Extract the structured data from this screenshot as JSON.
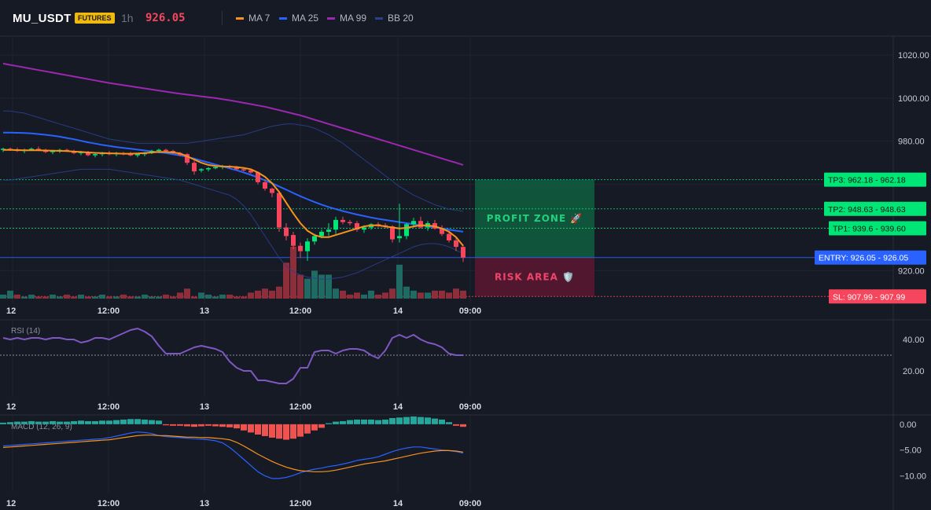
{
  "header": {
    "symbol": "MU_USDT",
    "badge": "FUTURES",
    "timeframe": "1h",
    "price": "926.05",
    "indicators": [
      {
        "label": "MA 7",
        "color": "#f7931a"
      },
      {
        "label": "MA 25",
        "color": "#2962ff"
      },
      {
        "label": "MA 99",
        "color": "#9c27b0"
      },
      {
        "label": "BB 20",
        "color": "#2a3f8f"
      }
    ]
  },
  "colors": {
    "up": "#26a69a",
    "up_bright": "#00e676",
    "down": "#f6465d",
    "vol_up": "#1f6b63",
    "vol_down": "#8f2e3b",
    "ma7": "#f7931a",
    "ma25": "#2962ff",
    "ma99": "#9c27b0",
    "bb": "#2a3f8f",
    "tp": "#00e676",
    "entry": "#2962ff",
    "sl": "#f6465d",
    "rsi": "#7e57c2",
    "macd": "#2962ff",
    "signal": "#f7931a"
  },
  "time_labels": [
    "12",
    "12:00",
    "13",
    "12:00",
    "14",
    "09:00"
  ],
  "zones": {
    "profit_label": "PROFIT ZONE 🚀",
    "risk_label": "RISK AREA 🛡️"
  },
  "chart_data": [
    {
      "type": "candlestick",
      "title": "MU_USDT 1h",
      "ylim": [
        907,
        1028
      ],
      "yticks": [
        920,
        940,
        960,
        980,
        1000,
        1020
      ],
      "ytick_labels": [
        "920.00",
        "",
        "",
        "980.00",
        "1000.00",
        "1020.00"
      ],
      "ohlc": [
        [
          976.0,
          977.0,
          975.0,
          976.5
        ],
        [
          976.5,
          977.0,
          975.5,
          976.0
        ],
        [
          976.0,
          977.0,
          975.0,
          975.5
        ],
        [
          975.5,
          976.5,
          974.5,
          976.0
        ],
        [
          976.0,
          977.0,
          975.5,
          976.5
        ],
        [
          976.5,
          977.5,
          975.5,
          976.0
        ],
        [
          976.0,
          976.5,
          974.5,
          975.0
        ],
        [
          975.0,
          976.0,
          974.0,
          975.5
        ],
        [
          975.5,
          976.5,
          974.5,
          976.0
        ],
        [
          976.0,
          976.5,
          975.0,
          975.5
        ],
        [
          975.5,
          976.0,
          974.0,
          974.5
        ],
        [
          974.5,
          975.5,
          973.5,
          975.0
        ],
        [
          975.0,
          975.5,
          973.0,
          973.5
        ],
        [
          973.5,
          974.5,
          972.5,
          974.0
        ],
        [
          974.0,
          975.0,
          973.0,
          974.5
        ],
        [
          974.5,
          975.5,
          973.5,
          974.0
        ],
        [
          974.0,
          975.0,
          973.0,
          974.5
        ],
        [
          974.5,
          975.0,
          973.5,
          974.0
        ],
        [
          974.0,
          975.0,
          973.0,
          973.5
        ],
        [
          973.5,
          974.5,
          972.5,
          974.0
        ],
        [
          974.0,
          975.0,
          973.0,
          974.5
        ],
        [
          974.5,
          976.0,
          974.0,
          975.5
        ],
        [
          975.5,
          976.5,
          974.5,
          976.0
        ],
        [
          976.0,
          976.5,
          975.0,
          975.5
        ],
        [
          975.5,
          976.0,
          974.0,
          974.5
        ],
        [
          974.5,
          975.0,
          973.0,
          973.5
        ],
        [
          974.0,
          974.5,
          969.0,
          970.0
        ],
        [
          970.0,
          971.0,
          964.5,
          966.0
        ],
        [
          966.5,
          967.5,
          965.5,
          967.0
        ],
        [
          967.0,
          968.0,
          966.0,
          967.5
        ],
        [
          967.5,
          968.5,
          967.0,
          968.0
        ],
        [
          968.0,
          969.0,
          967.0,
          968.5
        ],
        [
          968.5,
          969.0,
          967.5,
          968.0
        ],
        [
          968.0,
          968.5,
          966.5,
          967.0
        ],
        [
          967.0,
          968.0,
          966.0,
          966.5
        ],
        [
          966.5,
          967.0,
          965.0,
          965.5
        ],
        [
          965.5,
          966.0,
          960.0,
          961.0
        ],
        [
          961.0,
          962.0,
          957.0,
          958.0
        ],
        [
          958.0,
          958.5,
          954.0,
          956.0
        ],
        [
          956.0,
          957.0,
          938.0,
          940.0
        ],
        [
          940.0,
          942.0,
          934.0,
          936.0
        ],
        [
          936.5,
          938.0,
          930.0,
          931.5
        ],
        [
          931.5,
          933.0,
          926.0,
          929.0
        ],
        [
          929.0,
          935.0,
          924.5,
          933.5
        ],
        [
          933.5,
          937.0,
          932.0,
          936.0
        ],
        [
          936.0,
          939.0,
          935.0,
          938.0
        ],
        [
          938.0,
          942.0,
          936.0,
          939.0
        ],
        [
          939.0,
          945.0,
          937.0,
          943.5
        ],
        [
          943.5,
          945.0,
          941.5,
          942.5
        ],
        [
          942.5,
          943.5,
          941.0,
          942.0
        ],
        [
          942.0,
          943.0,
          938.0,
          939.0
        ],
        [
          939.0,
          941.0,
          937.5,
          940.0
        ],
        [
          940.0,
          942.0,
          939.0,
          941.5
        ],
        [
          941.5,
          942.5,
          940.0,
          941.0
        ],
        [
          941.0,
          942.0,
          939.5,
          940.5
        ],
        [
          940.5,
          941.0,
          933.0,
          934.5
        ],
        [
          935.0,
          951.0,
          933.0,
          936.0
        ],
        [
          936.0,
          942.0,
          934.5,
          941.5
        ],
        [
          941.5,
          944.5,
          940.0,
          943.0
        ],
        [
          943.0,
          945.0,
          939.5,
          940.0
        ],
        [
          940.0,
          943.0,
          938.5,
          942.0
        ],
        [
          942.0,
          943.5,
          939.0,
          939.5
        ],
        [
          939.5,
          941.0,
          936.0,
          937.0
        ],
        [
          937.0,
          938.5,
          933.0,
          934.0
        ],
        [
          934.0,
          935.5,
          929.0,
          931.0
        ],
        [
          931.0,
          932.0,
          924.0,
          926.05
        ]
      ],
      "volume": [
        2,
        4,
        2,
        1,
        2,
        1,
        1,
        2,
        1,
        2,
        1,
        2,
        1,
        1,
        2,
        1,
        1,
        2,
        1,
        1,
        2,
        1,
        1,
        2,
        1,
        3,
        5,
        1,
        3,
        2,
        1,
        2,
        2,
        1,
        1,
        3,
        4,
        5,
        4,
        6,
        18,
        26,
        12,
        10,
        14,
        12,
        12,
        5,
        4,
        2,
        3,
        2,
        4,
        2,
        3,
        5,
        17,
        6,
        4,
        3,
        3,
        4,
        4,
        3,
        5,
        4
      ],
      "volume_up": [
        true,
        true,
        false,
        true,
        true,
        false,
        false,
        true,
        true,
        false,
        false,
        true,
        false,
        true,
        true,
        false,
        true,
        false,
        false,
        true,
        true,
        true,
        true,
        false,
        false,
        false,
        false,
        false,
        true,
        true,
        true,
        true,
        false,
        false,
        false,
        false,
        false,
        false,
        false,
        false,
        false,
        false,
        false,
        true,
        true,
        true,
        true,
        true,
        false,
        false,
        false,
        true,
        true,
        false,
        false,
        false,
        true,
        true,
        true,
        false,
        true,
        false,
        false,
        false,
        false,
        false
      ],
      "ma7": [
        976.0,
        976.0,
        975.9,
        975.8,
        975.8,
        975.8,
        975.7,
        975.6,
        975.5,
        975.4,
        975.2,
        975.0,
        974.8,
        974.6,
        974.5,
        974.4,
        974.3,
        974.2,
        974.2,
        974.3,
        974.5,
        974.8,
        975.0,
        975.0,
        974.8,
        974.3,
        973.0,
        971.5,
        970.0,
        969.0,
        968.5,
        968.3,
        968.2,
        968.0,
        967.6,
        967.0,
        965.5,
        963.5,
        960.5,
        956.5,
        951.5,
        946.5,
        942.0,
        938.5,
        936.5,
        935.5,
        935.5,
        936.5,
        937.5,
        938.5,
        939.5,
        940.5,
        941.0,
        941.0,
        940.5,
        940.0,
        939.5,
        939.8,
        940.5,
        941.0,
        941.0,
        940.5,
        939.5,
        938.0,
        935.5,
        931.5
      ],
      "ma25": [
        984.0,
        984.0,
        983.9,
        983.8,
        983.6,
        983.3,
        983.0,
        982.6,
        982.1,
        981.5,
        980.9,
        980.2,
        979.5,
        978.9,
        978.3,
        977.8,
        977.3,
        976.9,
        976.5,
        976.1,
        975.7,
        975.3,
        974.9,
        974.5,
        974.0,
        973.4,
        972.7,
        971.9,
        971.0,
        970.1,
        969.2,
        968.3,
        967.4,
        966.5,
        965.5,
        964.4,
        963.2,
        961.9,
        960.5,
        959.0,
        957.5,
        956.0,
        954.5,
        953.1,
        951.8,
        950.6,
        949.5,
        948.5,
        947.6,
        946.8,
        946.0,
        945.3,
        944.6,
        944.0,
        943.5,
        943.0,
        942.5,
        942.0,
        941.5,
        941.0,
        940.5,
        940.0,
        939.5,
        939.0,
        938.5,
        938.0
      ],
      "ma99": [
        1016.0,
        1015.4,
        1014.8,
        1014.2,
        1013.6,
        1013.0,
        1012.4,
        1011.8,
        1011.2,
        1010.6,
        1010.0,
        1009.4,
        1008.8,
        1008.2,
        1007.6,
        1007.0,
        1006.5,
        1006.0,
        1005.5,
        1005.0,
        1004.5,
        1004.0,
        1003.5,
        1003.0,
        1002.5,
        1002.0,
        1001.6,
        1001.2,
        1000.8,
        1000.4,
        1000.0,
        999.5,
        999.0,
        998.4,
        997.8,
        997.2,
        996.6,
        996.0,
        995.2,
        994.4,
        993.6,
        992.8,
        992.0,
        991.0,
        990.0,
        989.0,
        988.0,
        987.0,
        986.0,
        985.0,
        984.0,
        983.0,
        982.0,
        981.0,
        980.0,
        979.0,
        978.0,
        977.0,
        976.0,
        975.0,
        974.0,
        973.0,
        972.0,
        971.0,
        970.0,
        969.0
      ],
      "bb_upper": [
        994.0,
        994.0,
        993.5,
        993.0,
        992.0,
        991.0,
        990.0,
        989.0,
        988.0,
        987.0,
        986.0,
        985.0,
        984.0,
        983.0,
        982.0,
        981.0,
        980.5,
        980.0,
        979.5,
        979.0,
        979.0,
        979.0,
        979.0,
        979.0,
        979.0,
        979.0,
        979.0,
        979.5,
        980.0,
        980.5,
        981.0,
        981.5,
        982.0,
        982.5,
        983.0,
        984.0,
        985.0,
        986.0,
        987.0,
        987.5,
        988.0,
        988.0,
        987.5,
        987.0,
        986.0,
        984.5,
        983.0,
        981.0,
        979.0,
        976.5,
        974.0,
        971.5,
        969.0,
        966.5,
        964.0,
        961.5,
        959.0,
        957.0,
        955.0,
        953.5,
        952.0,
        950.5,
        949.5,
        948.5,
        948.0,
        947.5
      ],
      "bb_lower": [
        962.0,
        962.0,
        962.5,
        963.0,
        963.5,
        964.0,
        964.5,
        965.0,
        965.5,
        966.0,
        966.5,
        967.0,
        967.0,
        967.0,
        967.0,
        967.0,
        966.5,
        966.0,
        965.5,
        965.0,
        964.5,
        964.0,
        963.5,
        963.0,
        962.5,
        962.0,
        961.0,
        960.0,
        959.0,
        958.0,
        957.0,
        956.0,
        955.0,
        953.0,
        950.0,
        946.0,
        941.0,
        936.0,
        931.0,
        926.0,
        922.0,
        919.5,
        918.0,
        917.0,
        916.5,
        916.0,
        916.0,
        916.5,
        917.0,
        918.0,
        919.0,
        920.5,
        922.0,
        923.5,
        925.0,
        926.5,
        928.0,
        929.5,
        931.0,
        932.0,
        932.5,
        932.5,
        932.0,
        931.0,
        929.5,
        928.0
      ],
      "levels": [
        {
          "name": "TP3",
          "label": "TP3: 962.18 - 962.18",
          "price": 962.18,
          "color": "#00e676"
        },
        {
          "name": "TP2",
          "label": "TP2: 948.63 - 948.63",
          "price": 948.63,
          "color": "#00e676"
        },
        {
          "name": "TP1",
          "label": "TP1: 939.6 - 939.60",
          "price": 939.6,
          "color": "#00e676"
        },
        {
          "name": "ENTRY",
          "label": "ENTRY: 926.05 - 926.05",
          "price": 926.05,
          "color": "#2962ff"
        },
        {
          "name": "SL",
          "label": "SL: 907.99 - 907.99",
          "price": 907.99,
          "color": "#f6465d"
        }
      ]
    },
    {
      "type": "line",
      "title": "RSI (14)",
      "ylim": [
        5,
        52
      ],
      "yticks": [
        20,
        40
      ],
      "ytick_labels": [
        "20.00",
        "40.00"
      ],
      "reference_line": 30,
      "values": [
        41,
        40,
        41,
        40,
        41,
        41,
        40,
        41,
        41,
        40,
        40,
        38,
        39,
        41,
        41,
        40,
        42,
        44,
        46,
        47,
        45,
        42,
        36,
        31,
        31,
        31,
        33,
        35,
        36,
        35,
        34,
        32,
        26,
        22,
        20,
        20,
        14,
        14,
        13,
        12,
        12,
        15,
        22,
        22,
        32,
        33,
        33,
        31,
        33,
        34,
        34,
        33,
        30,
        28,
        33,
        41,
        43,
        41,
        43,
        40,
        38,
        37,
        35,
        31,
        30,
        30
      ]
    },
    {
      "type": "bar",
      "title": "MACD (12, 26, 9)",
      "ylim": [
        -12.5,
        1.5
      ],
      "yticks": [
        0,
        -5,
        -10
      ],
      "ytick_labels": [
        "0.00",
        "−5.00",
        "−10.00"
      ],
      "histogram": [
        0.3,
        0.4,
        0.5,
        0.5,
        0.6,
        0.5,
        0.5,
        0.6,
        0.5,
        0.5,
        0.6,
        0.7,
        0.6,
        0.6,
        0.7,
        0.7,
        0.8,
        0.9,
        1.0,
        1.0,
        0.9,
        0.8,
        0.7,
        -0.2,
        -0.3,
        -0.3,
        -0.4,
        -0.5,
        -0.4,
        -0.3,
        -0.4,
        -0.5,
        -0.6,
        -0.8,
        -1.2,
        -1.6,
        -2.0,
        -2.3,
        -2.6,
        -2.8,
        -3.0,
        -2.8,
        -2.4,
        -1.8,
        -1.2,
        -0.7,
        0.2,
        0.5,
        0.6,
        0.8,
        0.9,
        0.9,
        0.9,
        0.8,
        0.9,
        1.2,
        1.3,
        1.4,
        1.5,
        1.4,
        1.3,
        1.1,
        0.9,
        0.4,
        -0.3,
        -0.5
      ],
      "macd": [
        -4.2,
        -4.1,
        -4.0,
        -3.9,
        -3.8,
        -3.7,
        -3.6,
        -3.5,
        -3.4,
        -3.3,
        -3.2,
        -3.1,
        -3.0,
        -2.9,
        -2.8,
        -2.6,
        -2.3,
        -2.0,
        -1.7,
        -1.5,
        -1.6,
        -1.8,
        -2.2,
        -2.4,
        -2.5,
        -2.6,
        -2.7,
        -2.8,
        -2.9,
        -3.0,
        -3.2,
        -3.6,
        -4.5,
        -5.6,
        -6.8,
        -8.0,
        -9.2,
        -10.0,
        -10.5,
        -10.5,
        -10.3,
        -9.9,
        -9.4,
        -9.0,
        -8.7,
        -8.5,
        -8.2,
        -8.0,
        -7.7,
        -7.4,
        -7.0,
        -6.8,
        -6.6,
        -6.3,
        -5.8,
        -5.3,
        -4.9,
        -4.6,
        -4.4,
        -4.4,
        -4.6,
        -4.8,
        -5.0,
        -5.1,
        -5.3,
        -5.6
      ],
      "signal": [
        -4.5,
        -4.4,
        -4.3,
        -4.2,
        -4.1,
        -4.0,
        -3.9,
        -3.8,
        -3.7,
        -3.6,
        -3.5,
        -3.4,
        -3.3,
        -3.2,
        -3.1,
        -3.0,
        -2.8,
        -2.6,
        -2.4,
        -2.2,
        -2.1,
        -2.1,
        -2.2,
        -2.2,
        -2.3,
        -2.4,
        -2.5,
        -2.5,
        -2.6,
        -2.6,
        -2.7,
        -2.8,
        -3.0,
        -3.5,
        -4.2,
        -5.0,
        -5.8,
        -6.5,
        -7.2,
        -7.8,
        -8.3,
        -8.7,
        -9.0,
        -9.1,
        -9.2,
        -9.2,
        -9.1,
        -8.9,
        -8.6,
        -8.3,
        -8.0,
        -7.7,
        -7.5,
        -7.3,
        -7.1,
        -6.8,
        -6.5,
        -6.2,
        -5.9,
        -5.6,
        -5.4,
        -5.2,
        -5.1,
        -5.1,
        -5.2,
        -5.4
      ]
    }
  ]
}
